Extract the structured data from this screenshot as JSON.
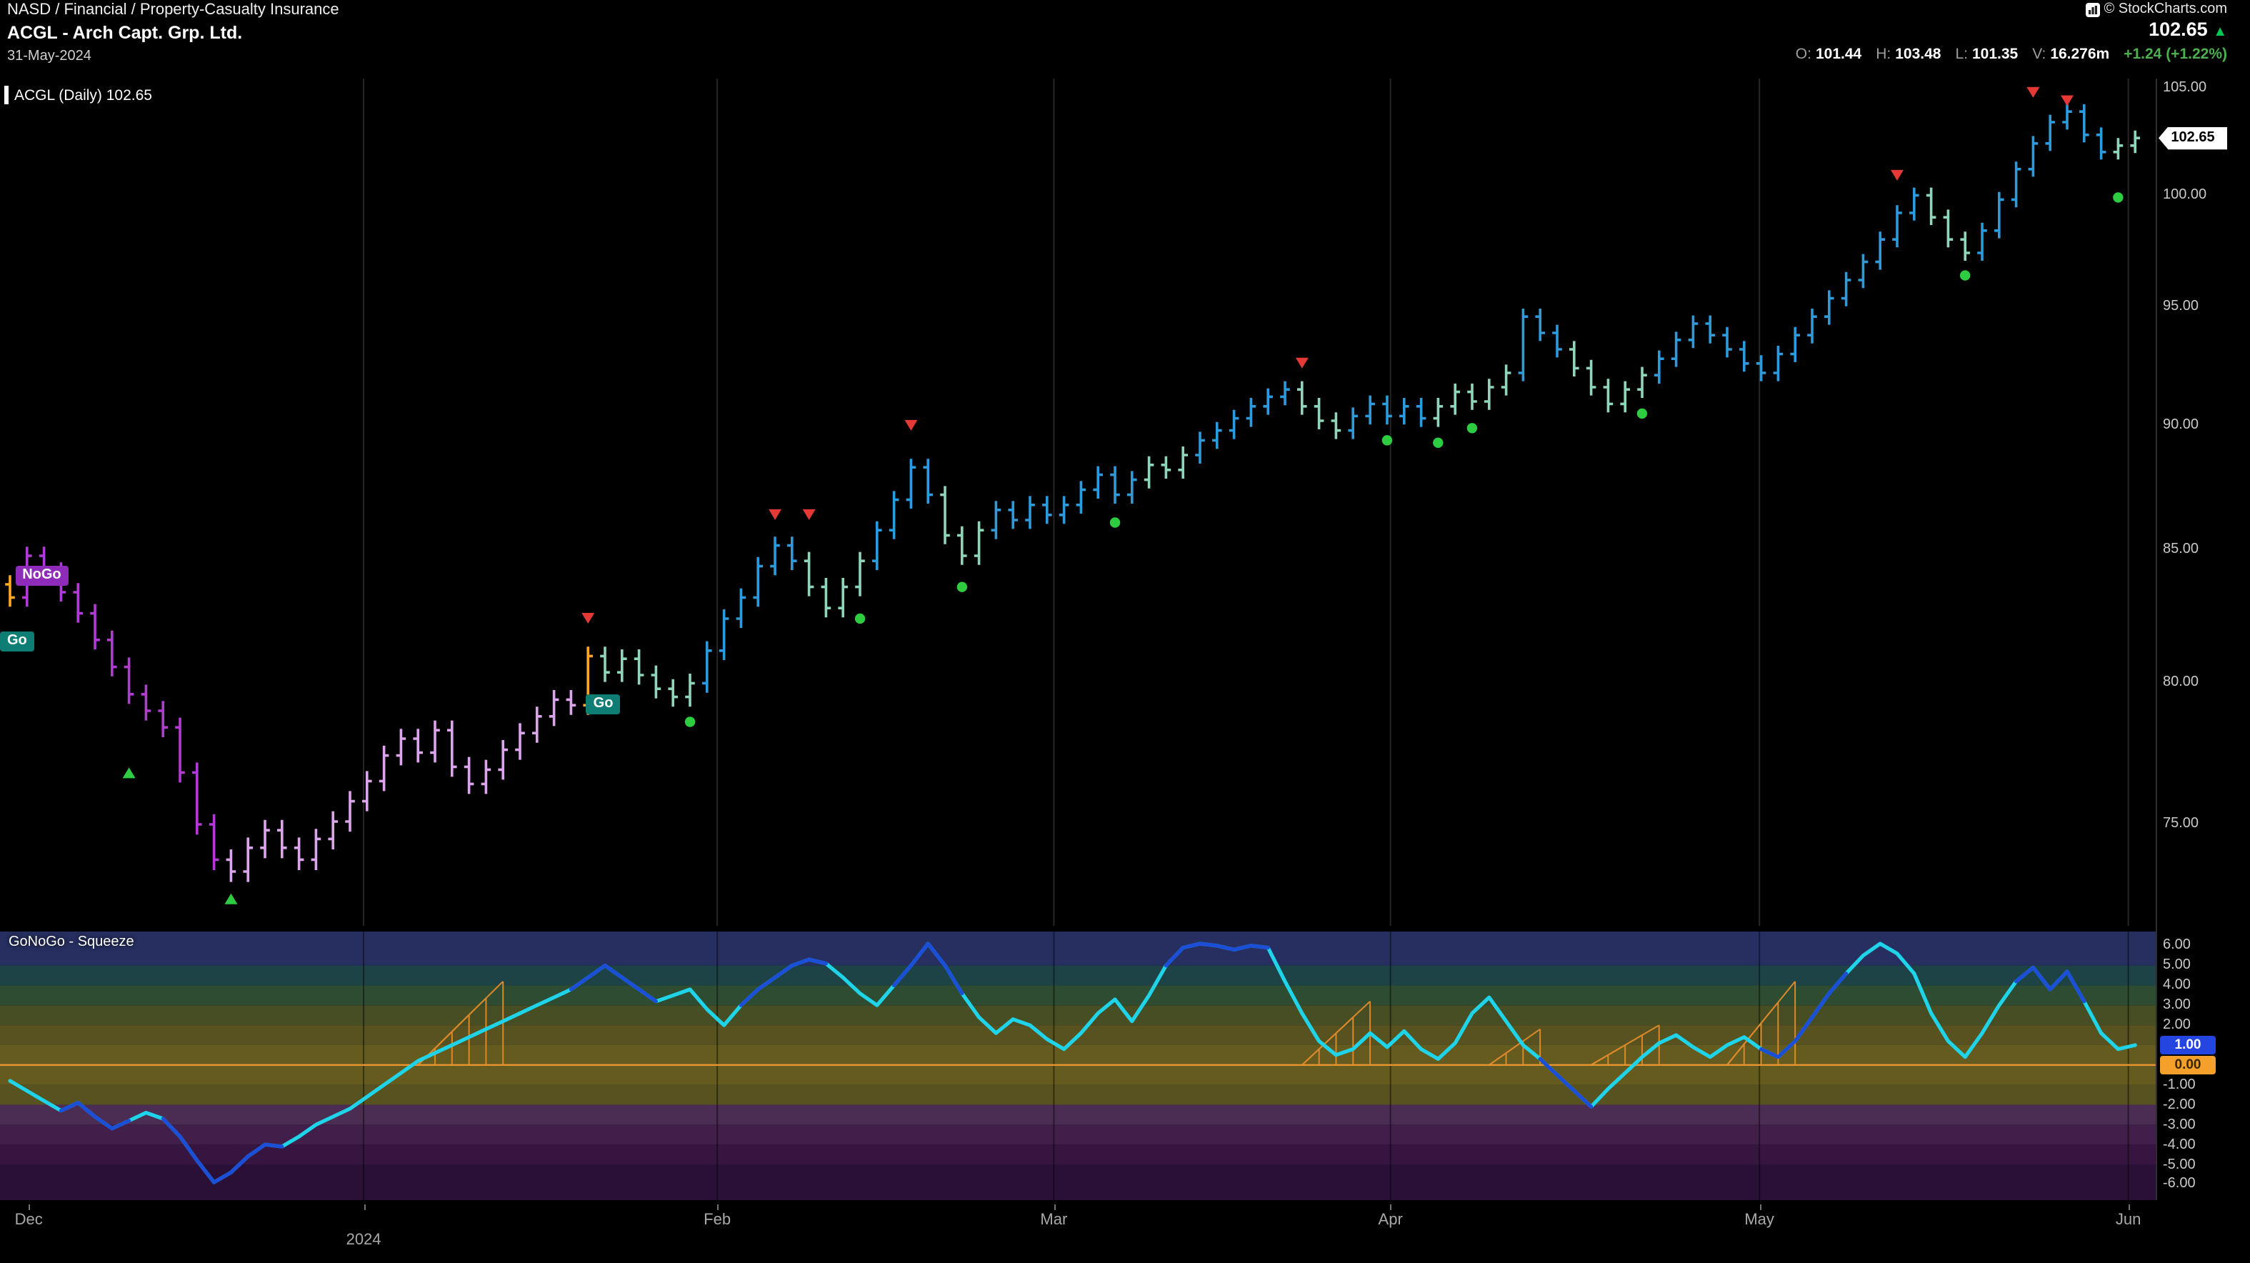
{
  "header": {
    "breadcrumb": "NASD / Financial / Property-Casualty Insurance",
    "title": "ACGL - Arch Capt. Grp. Ltd.",
    "date": "31-May-2024",
    "copyright": "© StockCharts.com",
    "last_price": "102.65",
    "up_arrow": "▲",
    "quote": {
      "o_label": "O:",
      "o_value": "101.44",
      "h_label": "H:",
      "h_value": "103.48",
      "l_label": "L:",
      "l_value": "101.35",
      "v_label": "V:",
      "v_value": "16.276m",
      "change": "+1.24 (+1.22%)"
    }
  },
  "main_chart": {
    "label": "ACGL (Daily) 102.65",
    "price_badge": "102.65"
  },
  "squeeze": {
    "label": "GoNoGo - Squeeze",
    "value_badge": "1.00",
    "zero_badge": "0.00"
  },
  "colors": {
    "go_strong": "#2d9bdb",
    "go_weak": "#8fd5b9",
    "nogo_strong": "#b13bd4",
    "nogo_weak": "#dca4ec",
    "amber": "#ffa726",
    "signal_green": "#2ecc40",
    "signal_red": "#e53935",
    "squeeze_cyan": "#1fd4e8",
    "squeeze_blue": "#1b4fd8",
    "zero_line": "#e8952f",
    "badge_blue": "#2445e0",
    "badge_orange": "#f5a02a",
    "nogo_badge_bg": "#8e2bb8",
    "go_badge_bg": "#0e7d74"
  },
  "x_axis": {
    "n": 126,
    "labels": [
      {
        "text": "Dec",
        "idx": 1.1
      },
      {
        "text": "2024",
        "idx": 20.8,
        "year": true
      },
      {
        "text": "Feb",
        "idx": 41.6
      },
      {
        "text": "Mar",
        "idx": 61.4
      },
      {
        "text": "Apr",
        "idx": 81.2
      },
      {
        "text": "May",
        "idx": 102.9
      },
      {
        "text": "Jun",
        "idx": 124.6
      }
    ],
    "gridline_idx": [
      20.8,
      41.6,
      61.4,
      81.2,
      102.9,
      124.6
    ]
  },
  "chart_data": [
    {
      "type": "bar",
      "subtype": "ohlc-daily-gonogo-trend",
      "symbol": "ACGL",
      "title": "ACGL (Daily)",
      "last": 102.65,
      "log_scale": true,
      "ylim": [
        72.5,
        105.9
      ],
      "y_ticks": [
        105,
        100,
        95,
        90,
        85,
        80,
        75
      ],
      "closes": [
        83.2,
        84.8,
        84.2,
        83.4,
        82.6,
        81.6,
        80.6,
        79.6,
        79.0,
        78.4,
        76.8,
        75.0,
        73.8,
        73.4,
        74.2,
        74.8,
        74.2,
        73.8,
        74.5,
        75.1,
        75.8,
        76.5,
        77.4,
        78.0,
        77.5,
        78.3,
        77.0,
        76.4,
        76.9,
        77.6,
        78.2,
        78.8,
        79.4,
        79.2,
        81.0,
        80.4,
        80.9,
        80.3,
        79.8,
        79.5,
        80.0,
        81.2,
        82.4,
        83.2,
        84.4,
        85.2,
        84.6,
        83.6,
        82.8,
        83.6,
        84.6,
        85.8,
        87.0,
        88.3,
        87.2,
        85.6,
        84.8,
        85.8,
        86.6,
        86.2,
        86.8,
        86.4,
        86.8,
        87.4,
        88.0,
        87.2,
        87.8,
        88.4,
        88.2,
        88.8,
        89.4,
        89.8,
        90.3,
        90.8,
        91.2,
        91.5,
        90.8,
        90.2,
        89.8,
        90.4,
        90.9,
        90.4,
        90.8,
        90.3,
        90.8,
        91.4,
        91.0,
        91.6,
        92.2,
        94.6,
        93.9,
        93.2,
        92.4,
        91.6,
        90.9,
        91.5,
        92.1,
        92.8,
        93.6,
        94.3,
        93.8,
        93.2,
        92.6,
        92.2,
        93.0,
        93.8,
        94.6,
        95.4,
        96.2,
        97.0,
        98.0,
        99.2,
        100.0,
        99.0,
        98.0,
        97.4,
        98.4,
        99.8,
        101.2,
        102.4,
        103.4,
        103.9,
        102.8,
        102.0,
        102.3,
        102.65
      ],
      "trend_runs": [
        [
          0,
          0,
          "amber"
        ],
        [
          1,
          12,
          "nogo_strong"
        ],
        [
          13,
          33,
          "nogo_weak"
        ],
        [
          34,
          34,
          "amber"
        ],
        [
          35,
          40,
          "go_weak"
        ],
        [
          41,
          46,
          "go_strong"
        ],
        [
          47,
          50,
          "go_weak"
        ],
        [
          51,
          54,
          "go_strong"
        ],
        [
          55,
          57,
          "go_weak"
        ],
        [
          58,
          66,
          "go_strong"
        ],
        [
          67,
          69,
          "go_weak"
        ],
        [
          70,
          75,
          "go_strong"
        ],
        [
          76,
          78,
          "go_weak"
        ],
        [
          79,
          83,
          "go_strong"
        ],
        [
          84,
          88,
          "go_weak"
        ],
        [
          89,
          91,
          "go_strong"
        ],
        [
          92,
          96,
          "go_weak"
        ],
        [
          97,
          112,
          "go_strong"
        ],
        [
          113,
          115,
          "go_weak"
        ],
        [
          116,
          123,
          "go_strong"
        ],
        [
          124,
          125,
          "go_weak"
        ]
      ],
      "signals": {
        "red_triangles": [
          {
            "i": 34,
            "p": 82.4
          },
          {
            "i": 45,
            "p": 86.4
          },
          {
            "i": 47,
            "p": 86.4
          },
          {
            "i": 53,
            "p": 90.0
          },
          {
            "i": 76,
            "p": 92.6
          },
          {
            "i": 111,
            "p": 100.9
          },
          {
            "i": 119,
            "p": 104.8
          },
          {
            "i": 121,
            "p": 104.4
          }
        ],
        "green_triangles": [
          {
            "i": 7,
            "p": 76.8
          },
          {
            "i": 13,
            "p": 72.5
          }
        ],
        "green_dots": [
          {
            "i": 40,
            "p": 78.6
          },
          {
            "i": 50,
            "p": 82.4
          },
          {
            "i": 56,
            "p": 83.6
          },
          {
            "i": 65,
            "p": 86.1
          },
          {
            "i": 81,
            "p": 89.4
          },
          {
            "i": 84,
            "p": 89.3
          },
          {
            "i": 86,
            "p": 89.9
          },
          {
            "i": 96,
            "p": 90.5
          },
          {
            "i": 115,
            "p": 96.4
          },
          {
            "i": 124,
            "p": 99.9
          }
        ]
      },
      "annotations": [
        {
          "text": "NoGo",
          "i": 1.9,
          "p": 84.0,
          "kind": "nogo"
        },
        {
          "text": "Go",
          "i": 0.4,
          "p": 81.5,
          "kind": "go"
        },
        {
          "text": "Go",
          "i": 34.9,
          "p": 79.2,
          "kind": "go"
        }
      ]
    },
    {
      "type": "line",
      "name": "GoNoGo - Squeeze",
      "last": 1.0,
      "zero_line": 0,
      "ylim": [
        -6.6,
        6.7
      ],
      "y_ticks": [
        6,
        5,
        4,
        3,
        2,
        1,
        0,
        -1,
        -2,
        -3,
        -4,
        -5,
        -6
      ],
      "values": [
        -0.8,
        -1.3,
        -1.8,
        -2.3,
        -1.9,
        -2.6,
        -3.2,
        -2.8,
        -2.4,
        -2.7,
        -3.6,
        -4.8,
        -5.9,
        -5.4,
        -4.6,
        -4.0,
        -4.1,
        -3.6,
        -3.0,
        -2.6,
        -2.2,
        -1.6,
        -1.0,
        -0.4,
        0.2,
        0.6,
        1.0,
        1.4,
        1.8,
        2.2,
        2.6,
        3.0,
        3.4,
        3.8,
        4.4,
        5.0,
        4.4,
        3.8,
        3.2,
        3.5,
        3.8,
        2.8,
        2.0,
        3.0,
        3.8,
        4.4,
        5.0,
        5.3,
        5.1,
        4.4,
        3.6,
        3.0,
        4.0,
        5.0,
        6.1,
        5.0,
        3.6,
        2.4,
        1.6,
        2.3,
        2.0,
        1.3,
        0.8,
        1.6,
        2.6,
        3.3,
        2.2,
        3.5,
        5.0,
        5.9,
        6.1,
        6.0,
        5.8,
        6.0,
        5.9,
        4.2,
        2.6,
        1.2,
        0.5,
        0.8,
        1.6,
        0.9,
        1.7,
        0.8,
        0.3,
        1.1,
        2.6,
        3.4,
        2.2,
        1.0,
        0.3,
        -0.5,
        -1.3,
        -2.1,
        -1.2,
        -0.4,
        0.4,
        1.1,
        1.5,
        0.9,
        0.4,
        1.0,
        1.4,
        0.8,
        0.4,
        1.2,
        2.4,
        3.6,
        4.6,
        5.5,
        6.1,
        5.6,
        4.6,
        2.6,
        1.2,
        0.4,
        1.6,
        3.0,
        4.2,
        4.9,
        3.8,
        4.7,
        3.2,
        1.6,
        0.8,
        1.0
      ],
      "blue_segments": [
        [
          3,
          7
        ],
        [
          9,
          16
        ],
        [
          33,
          38
        ],
        [
          43,
          48
        ],
        [
          52,
          56
        ],
        [
          68,
          74
        ],
        [
          90,
          93
        ],
        [
          103,
          108
        ],
        [
          118,
          122
        ]
      ],
      "squeeze_grids": [
        {
          "s": 24,
          "e": 29,
          "h": 4.2
        },
        {
          "s": 76,
          "e": 80,
          "h": 3.2
        },
        {
          "s": 87,
          "e": 90,
          "h": 1.8
        },
        {
          "s": 93,
          "e": 97,
          "h": 2.0
        },
        {
          "s": 101,
          "e": 105,
          "h": 4.2
        }
      ],
      "bands": [
        [
          7,
          5,
          "#262f60"
        ],
        [
          5,
          4,
          "#1d4347"
        ],
        [
          4,
          3,
          "#2e4c31"
        ],
        [
          3,
          2,
          "#474e23"
        ],
        [
          2,
          1,
          "#575220"
        ],
        [
          1,
          0,
          "#665b1e"
        ],
        [
          0,
          -1,
          "#665b1e"
        ],
        [
          -1,
          -2,
          "#575220"
        ],
        [
          -2,
          -3,
          "#4b2c52"
        ],
        [
          -3,
          -4,
          "#421f4b"
        ],
        [
          -4,
          -5,
          "#361640"
        ],
        [
          -5,
          -7,
          "#2a0f36"
        ]
      ]
    }
  ]
}
